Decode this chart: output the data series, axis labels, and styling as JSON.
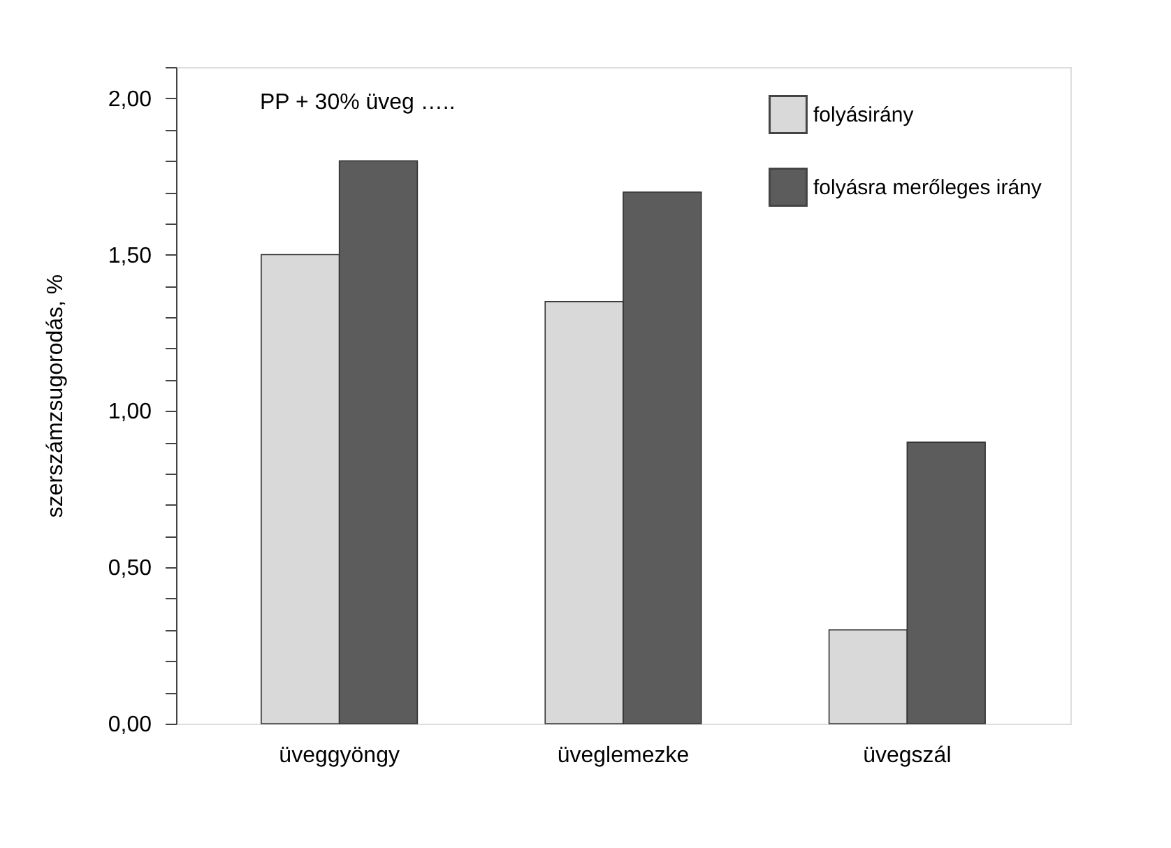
{
  "chart_data": {
    "type": "bar",
    "ylabel": "szerszámzsugorodás, %",
    "categories": [
      "üveggyöngy",
      "üveglemezke",
      "üvegszál"
    ],
    "series": [
      {
        "name": "folyásirány",
        "color": "#d9d9d9",
        "values": [
          1.5,
          1.35,
          0.3
        ]
      },
      {
        "name": "folyásra merőleges irány",
        "color": "#5c5c5c",
        "values": [
          1.8,
          1.7,
          0.9
        ]
      }
    ],
    "ylim": [
      0,
      2.1
    ],
    "yticks": [
      {
        "value": 0,
        "label": "0,00"
      },
      {
        "value": 0.1,
        "label": null
      },
      {
        "value": 0.2,
        "label": null
      },
      {
        "value": 0.3,
        "label": null
      },
      {
        "value": 0.4,
        "label": null
      },
      {
        "value": 0.5,
        "label": "0,50"
      },
      {
        "value": 0.6,
        "label": null
      },
      {
        "value": 0.7,
        "label": null
      },
      {
        "value": 0.8,
        "label": null
      },
      {
        "value": 0.9,
        "label": null
      },
      {
        "value": 1.0,
        "label": "1,00"
      },
      {
        "value": 1.1,
        "label": null
      },
      {
        "value": 1.2,
        "label": null
      },
      {
        "value": 1.3,
        "label": null
      },
      {
        "value": 1.4,
        "label": null
      },
      {
        "value": 1.5,
        "label": "1,50"
      },
      {
        "value": 1.6,
        "label": null
      },
      {
        "value": 1.7,
        "label": null
      },
      {
        "value": 1.8,
        "label": null
      },
      {
        "value": 1.9,
        "label": null
      },
      {
        "value": 2.0,
        "label": "2,00"
      },
      {
        "value": 2.1,
        "label": null
      }
    ],
    "annotations": [
      "PP + 30% üveg ….."
    ],
    "legend": "top right",
    "grid": false
  }
}
